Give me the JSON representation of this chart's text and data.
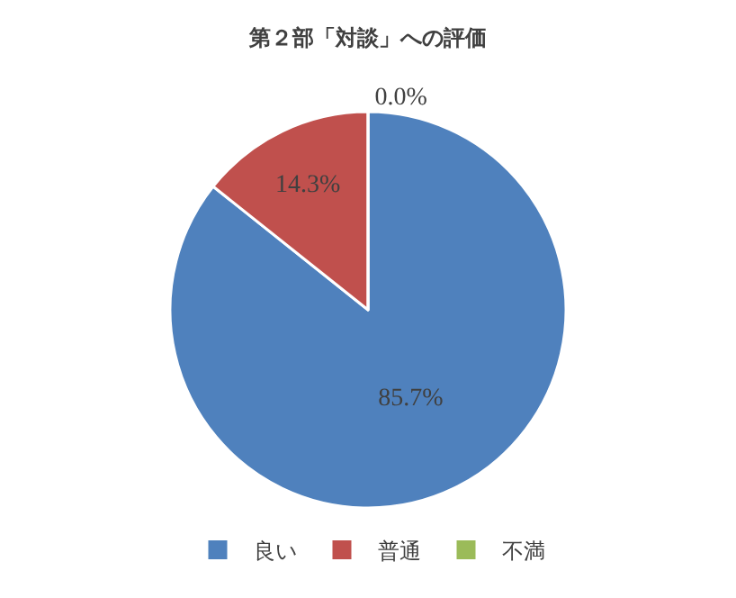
{
  "chart_data": {
    "type": "pie",
    "title": "第２部「対談」への評価",
    "categories": [
      "良い",
      "普通",
      "不満"
    ],
    "values": [
      85.7,
      14.3,
      0.0
    ],
    "colors": [
      "#4f81bd",
      "#c0504d",
      "#9bbb59"
    ],
    "value_labels": [
      "85.7%",
      "14.3%",
      "0.0%"
    ],
    "legend": "bottom"
  }
}
